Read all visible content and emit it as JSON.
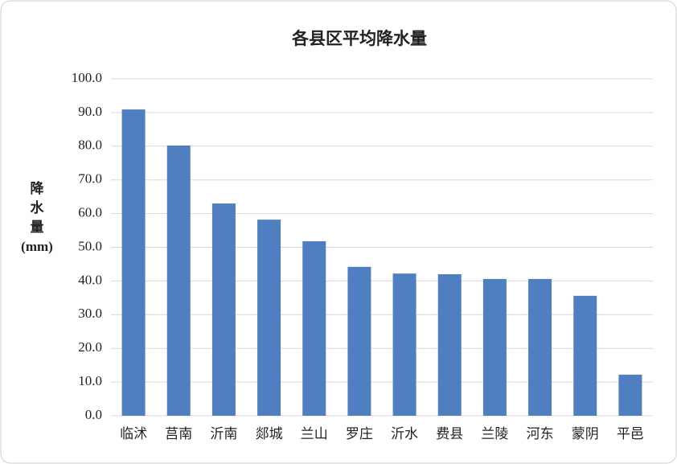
{
  "chart_data": {
    "type": "bar",
    "title": "各县区平均降水量",
    "ylabel_lines": [
      "降",
      "水",
      "量",
      "(mm)"
    ],
    "categories": [
      "临沭",
      "莒南",
      "沂南",
      "郯城",
      "兰山",
      "罗庄",
      "沂水",
      "费县",
      "兰陵",
      "河东",
      "蒙阴",
      "平邑"
    ],
    "values": [
      90.9,
      80.2,
      63.0,
      58.2,
      51.8,
      44.2,
      42.2,
      42.0,
      40.6,
      40.6,
      35.6,
      12.2
    ],
    "color": "#4f7fc0",
    "ylim": [
      0,
      100
    ],
    "yticks": [
      {
        "value": 0,
        "label": "0.0"
      },
      {
        "value": 10,
        "label": "10.0"
      },
      {
        "value": 20,
        "label": "20.0"
      },
      {
        "value": 30,
        "label": "30.0"
      },
      {
        "value": 40,
        "label": "40.0"
      },
      {
        "value": 50,
        "label": "50.0"
      },
      {
        "value": 60,
        "label": "60.0"
      },
      {
        "value": 70,
        "label": "70.0"
      },
      {
        "value": 80,
        "label": "80.0"
      },
      {
        "value": 90,
        "label": "90.0"
      },
      {
        "value": 100,
        "label": "100.0"
      }
    ],
    "grid": true
  }
}
